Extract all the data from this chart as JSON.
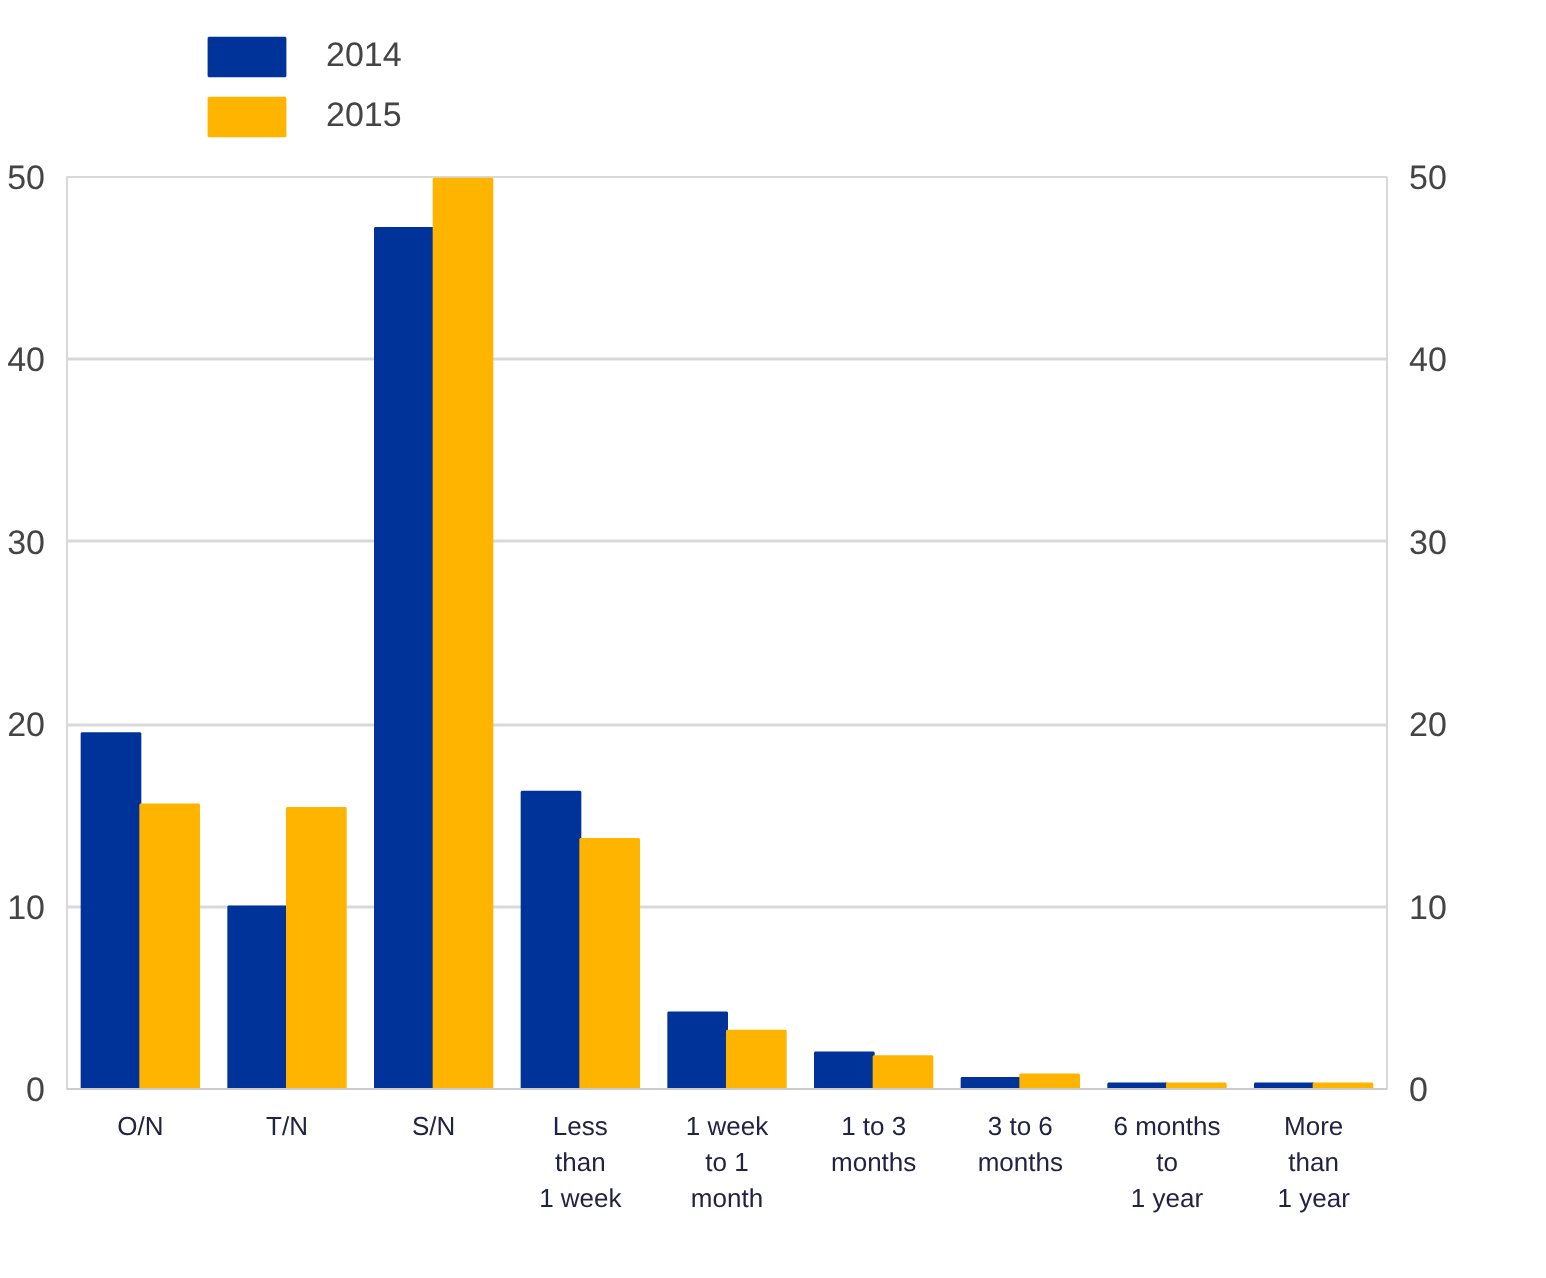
{
  "chart_data": {
    "type": "bar",
    "categories": [
      "O/N",
      "T/N",
      "S/N",
      "Less\nthan\n1 week",
      "1 week\nto 1\nmonth",
      "1 to 3\nmonths",
      "3 to 6\nmonths",
      "6 months\nto\n1 year",
      "More\nthan\n1 year"
    ],
    "series": [
      {
        "name": "2014",
        "color": "#003399",
        "values": [
          19.5,
          10.0,
          47.2,
          16.3,
          4.2,
          2.0,
          0.6,
          0.3,
          0.3
        ]
      },
      {
        "name": "2015",
        "color": "#ffb400",
        "values": [
          15.6,
          15.4,
          49.9,
          13.7,
          3.2,
          1.8,
          0.8,
          0.3,
          0.3
        ]
      }
    ],
    "ylim": [
      0,
      50
    ],
    "yticks": [
      0,
      10,
      20,
      30,
      40,
      50
    ],
    "y2lim": [
      0,
      50
    ],
    "y2ticks": [
      0,
      10,
      20,
      30,
      40,
      50
    ],
    "grid": "y",
    "legend": "top left"
  }
}
